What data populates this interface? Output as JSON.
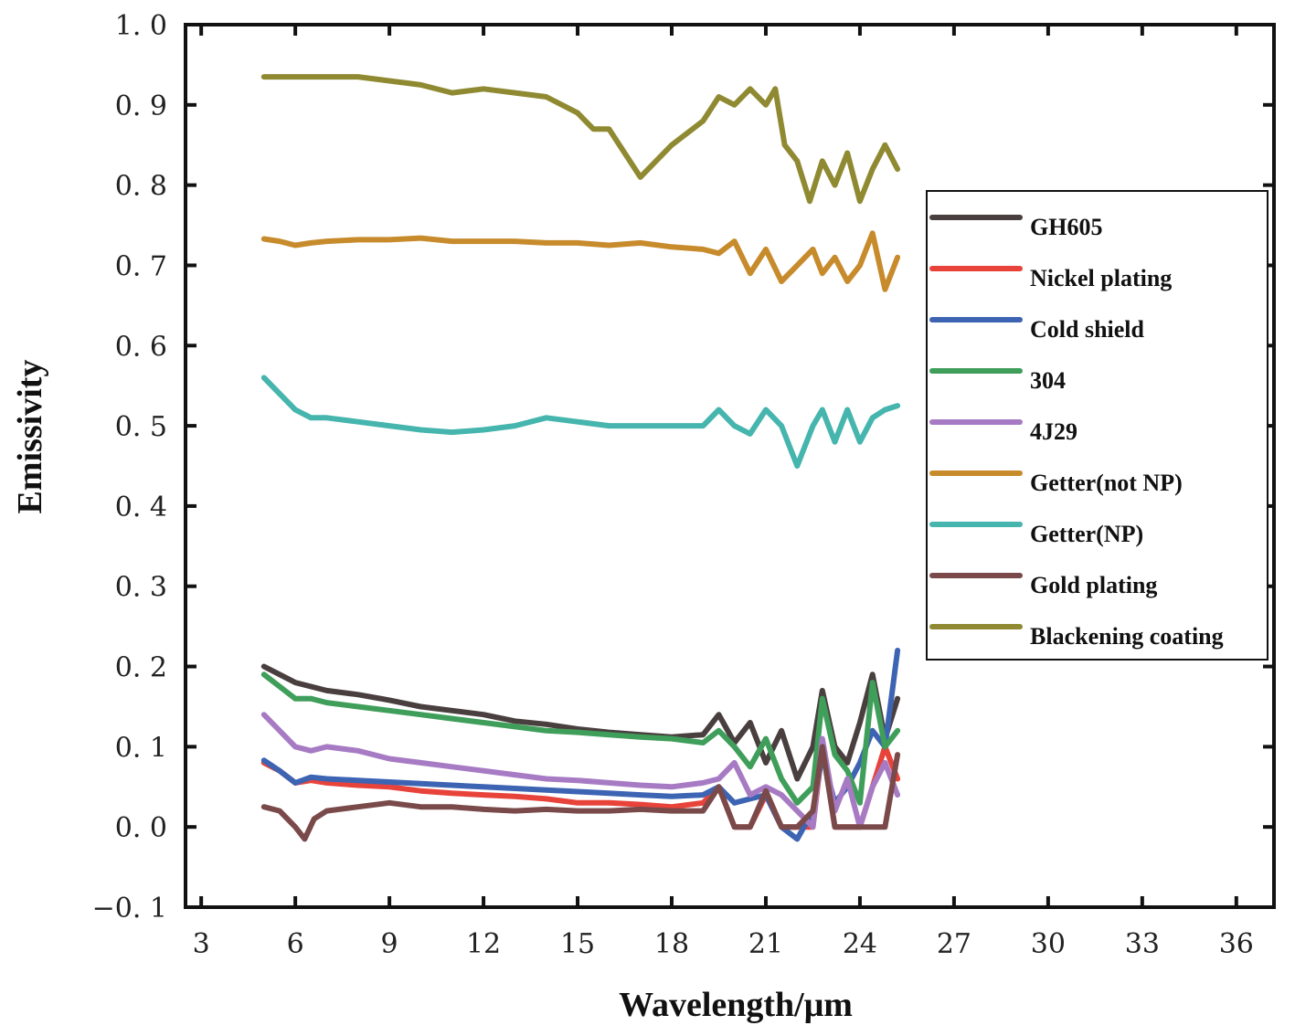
{
  "chart_data": {
    "type": "line",
    "title": "",
    "xlabel": "Wavelength/μm",
    "ylabel": "Emissivity",
    "xlim": [
      2.5,
      37.2
    ],
    "ylim": [
      -0.1,
      1.0
    ],
    "xticks": [
      3,
      6,
      9,
      12,
      15,
      18,
      21,
      24,
      27,
      30,
      33,
      36
    ],
    "xtick_labels": [
      "3",
      "6",
      "9",
      "12",
      "15",
      "18",
      "21",
      "24",
      "27",
      "30",
      "33",
      "36"
    ],
    "yticks": [
      -0.1,
      0.0,
      0.1,
      0.2,
      0.3,
      0.4,
      0.5,
      0.6,
      0.7,
      0.8,
      0.9,
      1.0
    ],
    "ytick_labels": [
      "−0. 1",
      "0. 0",
      "0. 1",
      "0. 2",
      "0. 3",
      "0. 4",
      "0. 5",
      "0. 6",
      "0. 7",
      "0. 8",
      "0. 9",
      "1. 0"
    ],
    "grid": false,
    "legend_position": "right",
    "series": [
      {
        "name": "GH605",
        "color": "#4a3f3f",
        "x": [
          5,
          5.5,
          6,
          6.5,
          7,
          8,
          9,
          10,
          11,
          12,
          13,
          14,
          15,
          16,
          17,
          18,
          19,
          19.5,
          20,
          20.5,
          21,
          21.5,
          22,
          22.5,
          22.8,
          23.2,
          23.6,
          24,
          24.4,
          24.8,
          25.2
        ],
        "y": [
          0.2,
          0.19,
          0.18,
          0.175,
          0.17,
          0.165,
          0.158,
          0.15,
          0.145,
          0.14,
          0.132,
          0.128,
          0.122,
          0.118,
          0.115,
          0.112,
          0.115,
          0.14,
          0.105,
          0.13,
          0.08,
          0.12,
          0.06,
          0.1,
          0.17,
          0.1,
          0.08,
          0.13,
          0.19,
          0.11,
          0.16
        ]
      },
      {
        "name": "Nickel plating",
        "color": "#e8433a",
        "x": [
          5,
          5.5,
          6,
          6.5,
          7,
          8,
          9,
          10,
          11,
          12,
          13,
          14,
          15,
          16,
          17,
          18,
          19,
          19.5,
          20,
          20.5,
          21,
          21.5,
          22,
          22.5,
          22.8,
          23.2,
          23.6,
          24,
          24.4,
          24.8,
          25.2
        ],
        "y": [
          0.08,
          0.07,
          0.055,
          0.058,
          0.055,
          0.052,
          0.05,
          0.045,
          0.042,
          0.04,
          0.038,
          0.035,
          0.03,
          0.03,
          0.028,
          0.025,
          0.03,
          0.05,
          0.0,
          0.0,
          0.04,
          0.0,
          0.0,
          0.0,
          0.1,
          0.0,
          0.0,
          0.0,
          0.05,
          0.1,
          0.06
        ]
      },
      {
        "name": "Cold shield",
        "color": "#3d63b3",
        "x": [
          5,
          5.5,
          6,
          6.5,
          7,
          8,
          9,
          10,
          11,
          12,
          13,
          14,
          15,
          16,
          17,
          18,
          19,
          19.5,
          20,
          20.5,
          21,
          21.5,
          22,
          22.5,
          22.8,
          23.2,
          23.6,
          24,
          24.4,
          24.8,
          25.2
        ],
        "y": [
          0.083,
          0.07,
          0.055,
          0.062,
          0.06,
          0.058,
          0.056,
          0.054,
          0.052,
          0.05,
          0.048,
          0.046,
          0.044,
          0.042,
          0.04,
          0.038,
          0.04,
          0.05,
          0.03,
          0.035,
          0.04,
          0.0,
          -0.015,
          0.02,
          0.09,
          0.03,
          0.05,
          0.08,
          0.12,
          0.1,
          0.22
        ]
      },
      {
        "name": "304",
        "color": "#3f9e5a",
        "x": [
          5,
          5.5,
          6,
          6.5,
          7,
          8,
          9,
          10,
          11,
          12,
          13,
          14,
          15,
          16,
          17,
          18,
          19,
          19.5,
          20,
          20.5,
          21,
          21.5,
          22,
          22.5,
          22.8,
          23.2,
          23.6,
          24,
          24.4,
          24.8,
          25.2
        ],
        "y": [
          0.19,
          0.175,
          0.16,
          0.16,
          0.155,
          0.15,
          0.145,
          0.14,
          0.135,
          0.13,
          0.125,
          0.12,
          0.118,
          0.115,
          0.112,
          0.11,
          0.105,
          0.12,
          0.1,
          0.075,
          0.11,
          0.06,
          0.03,
          0.05,
          0.16,
          0.09,
          0.07,
          0.03,
          0.18,
          0.1,
          0.12
        ]
      },
      {
        "name": "4J29",
        "color": "#a77bc4",
        "x": [
          5,
          5.5,
          6,
          6.5,
          7,
          8,
          9,
          10,
          11,
          12,
          13,
          14,
          15,
          16,
          17,
          18,
          19,
          19.5,
          20,
          20.5,
          21,
          21.5,
          22,
          22.5,
          22.8,
          23.2,
          23.6,
          24,
          24.4,
          24.8,
          25.2
        ],
        "y": [
          0.14,
          0.12,
          0.1,
          0.095,
          0.1,
          0.095,
          0.085,
          0.08,
          0.075,
          0.07,
          0.065,
          0.06,
          0.058,
          0.055,
          0.052,
          0.05,
          0.055,
          0.06,
          0.08,
          0.04,
          0.05,
          0.04,
          0.02,
          0.0,
          0.11,
          0.02,
          0.06,
          0.0,
          0.05,
          0.08,
          0.04
        ]
      },
      {
        "name": "Getter(not NP)",
        "color": "#c78b2c",
        "x": [
          5,
          5.5,
          6,
          6.5,
          7,
          8,
          9,
          10,
          11,
          12,
          13,
          14,
          15,
          16,
          17,
          18,
          19,
          19.5,
          20,
          20.5,
          21,
          21.5,
          22,
          22.5,
          22.8,
          23.2,
          23.6,
          24,
          24.4,
          24.8,
          25.2
        ],
        "y": [
          0.733,
          0.73,
          0.725,
          0.728,
          0.73,
          0.732,
          0.732,
          0.734,
          0.73,
          0.73,
          0.73,
          0.728,
          0.728,
          0.725,
          0.728,
          0.723,
          0.72,
          0.715,
          0.73,
          0.69,
          0.72,
          0.68,
          0.7,
          0.72,
          0.69,
          0.71,
          0.68,
          0.7,
          0.74,
          0.67,
          0.71
        ]
      },
      {
        "name": "Getter(NP)",
        "color": "#45b5ad",
        "x": [
          5,
          5.5,
          6,
          6.5,
          7,
          8,
          9,
          10,
          11,
          12,
          13,
          14,
          15,
          16,
          17,
          18,
          19,
          19.5,
          20,
          20.5,
          21,
          21.5,
          22,
          22.5,
          22.8,
          23.2,
          23.6,
          24,
          24.4,
          24.8,
          25.2
        ],
        "y": [
          0.56,
          0.54,
          0.52,
          0.51,
          0.51,
          0.505,
          0.5,
          0.495,
          0.492,
          0.495,
          0.5,
          0.51,
          0.505,
          0.5,
          0.5,
          0.5,
          0.5,
          0.52,
          0.5,
          0.49,
          0.52,
          0.5,
          0.45,
          0.5,
          0.52,
          0.48,
          0.52,
          0.48,
          0.51,
          0.52,
          0.525
        ]
      },
      {
        "name": "Gold plating",
        "color": "#7a4a4a",
        "x": [
          5,
          5.5,
          6,
          6.3,
          6.6,
          7,
          8,
          9,
          10,
          11,
          12,
          13,
          14,
          15,
          16,
          17,
          18,
          19,
          19.5,
          20,
          20.5,
          21,
          21.5,
          22,
          22.5,
          22.8,
          23.2,
          23.6,
          24,
          24.4,
          24.8,
          25.2
        ],
        "y": [
          0.025,
          0.02,
          0.0,
          -0.015,
          0.01,
          0.02,
          0.025,
          0.03,
          0.025,
          0.025,
          0.022,
          0.02,
          0.022,
          0.02,
          0.02,
          0.022,
          0.02,
          0.02,
          0.05,
          0.0,
          0.0,
          0.045,
          0.0,
          0.0,
          0.02,
          0.1,
          0.0,
          0.0,
          0.0,
          0.0,
          0.0,
          0.09
        ]
      },
      {
        "name": "Blackening coating",
        "color": "#8f8a32",
        "x": [
          5,
          6,
          7,
          8,
          9,
          10,
          11,
          12,
          13,
          14,
          15,
          15.5,
          16,
          16.5,
          17,
          18,
          19,
          19.5,
          20,
          20.5,
          21,
          21.3,
          21.6,
          22,
          22.4,
          22.8,
          23.2,
          23.6,
          24,
          24.4,
          24.8,
          25.2
        ],
        "y": [
          0.935,
          0.935,
          0.935,
          0.935,
          0.93,
          0.925,
          0.915,
          0.92,
          0.915,
          0.91,
          0.89,
          0.87,
          0.87,
          0.84,
          0.81,
          0.85,
          0.88,
          0.91,
          0.9,
          0.92,
          0.9,
          0.92,
          0.85,
          0.83,
          0.78,
          0.83,
          0.8,
          0.84,
          0.78,
          0.82,
          0.85,
          0.82
        ]
      }
    ]
  }
}
